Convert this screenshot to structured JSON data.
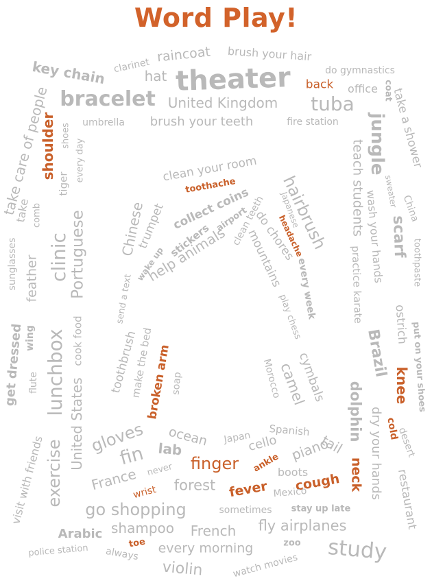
{
  "title": "Word Play!",
  "colors": {
    "title": "#D2622A",
    "gray": "#B9B9B9",
    "orange": "#C9602A"
  },
  "words": [
    "raincoat",
    "brush your hair",
    "clarinet",
    "key chain",
    "hat",
    "theater",
    "do gymnastics",
    "back",
    "office",
    "coat",
    "bracelet",
    "United Kingdom",
    "tuba",
    "take a shower",
    "take care of people",
    "umbrella",
    "brush your teeth",
    "fire station",
    "shoulder",
    "shoes",
    "every day",
    "jungle",
    "teach students",
    "sweater",
    "China",
    "tiger",
    "clean your room",
    "toothache",
    "hairbrush",
    "collect coins",
    "Japanese",
    "take",
    "comb",
    "trumpet",
    "airport",
    "clean teeth",
    "wash your hands",
    "Chinese",
    "headache",
    "do chores",
    "stickers",
    "help animals",
    "scarf",
    "toothpaste",
    "wake up",
    "mountains",
    "sunglasses",
    "clinic",
    "Portuguese",
    "feather",
    "practice karate",
    "every week",
    "send a text",
    "play chess",
    "ostrich",
    "get dressed",
    "wing",
    "cook food",
    "lunchbox",
    "Brazil",
    "put on your shoes",
    "flute",
    "toothbrush",
    "make the bed",
    "broken arm",
    "soap",
    "Morocco",
    "camel",
    "cymbals",
    "knee",
    "United States",
    "dolphin",
    "cold",
    "dry your hands",
    "desert",
    "visit with friends",
    "gloves",
    "ocean",
    "Japan",
    "Spanish",
    "tail",
    "exercise",
    "fin",
    "lab",
    "cello",
    "piano",
    "finger",
    "ankle",
    "boots",
    "never",
    "France",
    "forest",
    "neck",
    "fever",
    "cough",
    "restaurant",
    "wrist",
    "Mexico",
    "go shopping",
    "sometimes",
    "stay up late",
    "Arabic",
    "shampoo",
    "French",
    "fly airplanes",
    "toe",
    "every morning",
    "zoo",
    "study",
    "police station",
    "always",
    "violin",
    "watch movies"
  ]
}
